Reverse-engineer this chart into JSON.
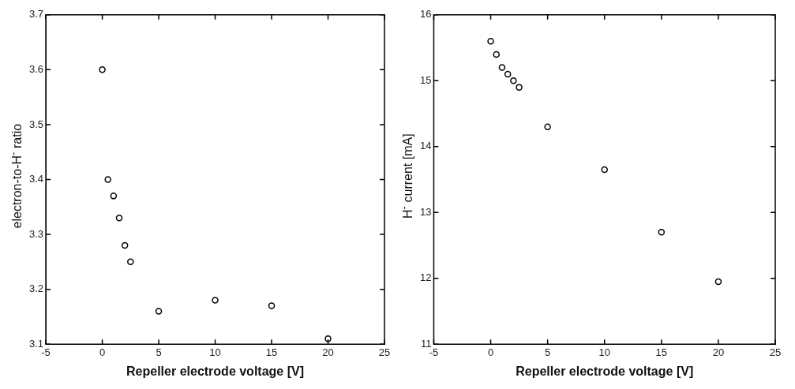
{
  "chart_data": [
    {
      "type": "scatter",
      "xlabel": "Repeller electrode voltage [V]",
      "ylabel": "electron-to-H$^{-}$ ratio",
      "x": [
        0,
        0.5,
        1,
        1.5,
        2,
        2.5,
        5,
        10,
        15,
        20
      ],
      "series": [
        {
          "color": "#000000",
          "values": [
            3.6,
            3.4,
            3.37,
            3.33,
            3.28,
            3.25,
            3.16,
            3.18,
            3.17,
            3.11
          ]
        }
      ],
      "xlim": [
        -5,
        25
      ],
      "xticks": [
        -5,
        0,
        5,
        10,
        15,
        20,
        25
      ],
      "ylim": [
        3.1,
        3.7
      ],
      "yticks": [
        3.1,
        3.2,
        3.3,
        3.4,
        3.5,
        3.6,
        3.7
      ],
      "marker": "circle",
      "grid": false,
      "legend": false
    },
    {
      "type": "scatter",
      "xlabel": "Repeller electrode voltage [V]",
      "ylabel": "H$^{-}$ current [mA]",
      "x": [
        0,
        0.5,
        1,
        1.5,
        2,
        2.5,
        5,
        10,
        15,
        20
      ],
      "series": [
        {
          "color": "#000000",
          "values": [
            15.6,
            15.4,
            15.2,
            15.1,
            15.0,
            14.9,
            14.3,
            13.65,
            12.7,
            11.95
          ]
        }
      ],
      "xlim": [
        -5,
        25
      ],
      "xticks": [
        -5,
        0,
        5,
        10,
        15,
        20,
        25
      ],
      "ylim": [
        11,
        16
      ],
      "yticks": [
        11,
        12,
        13,
        14,
        15,
        16
      ],
      "marker": "circle",
      "grid": false,
      "legend": false
    }
  ]
}
